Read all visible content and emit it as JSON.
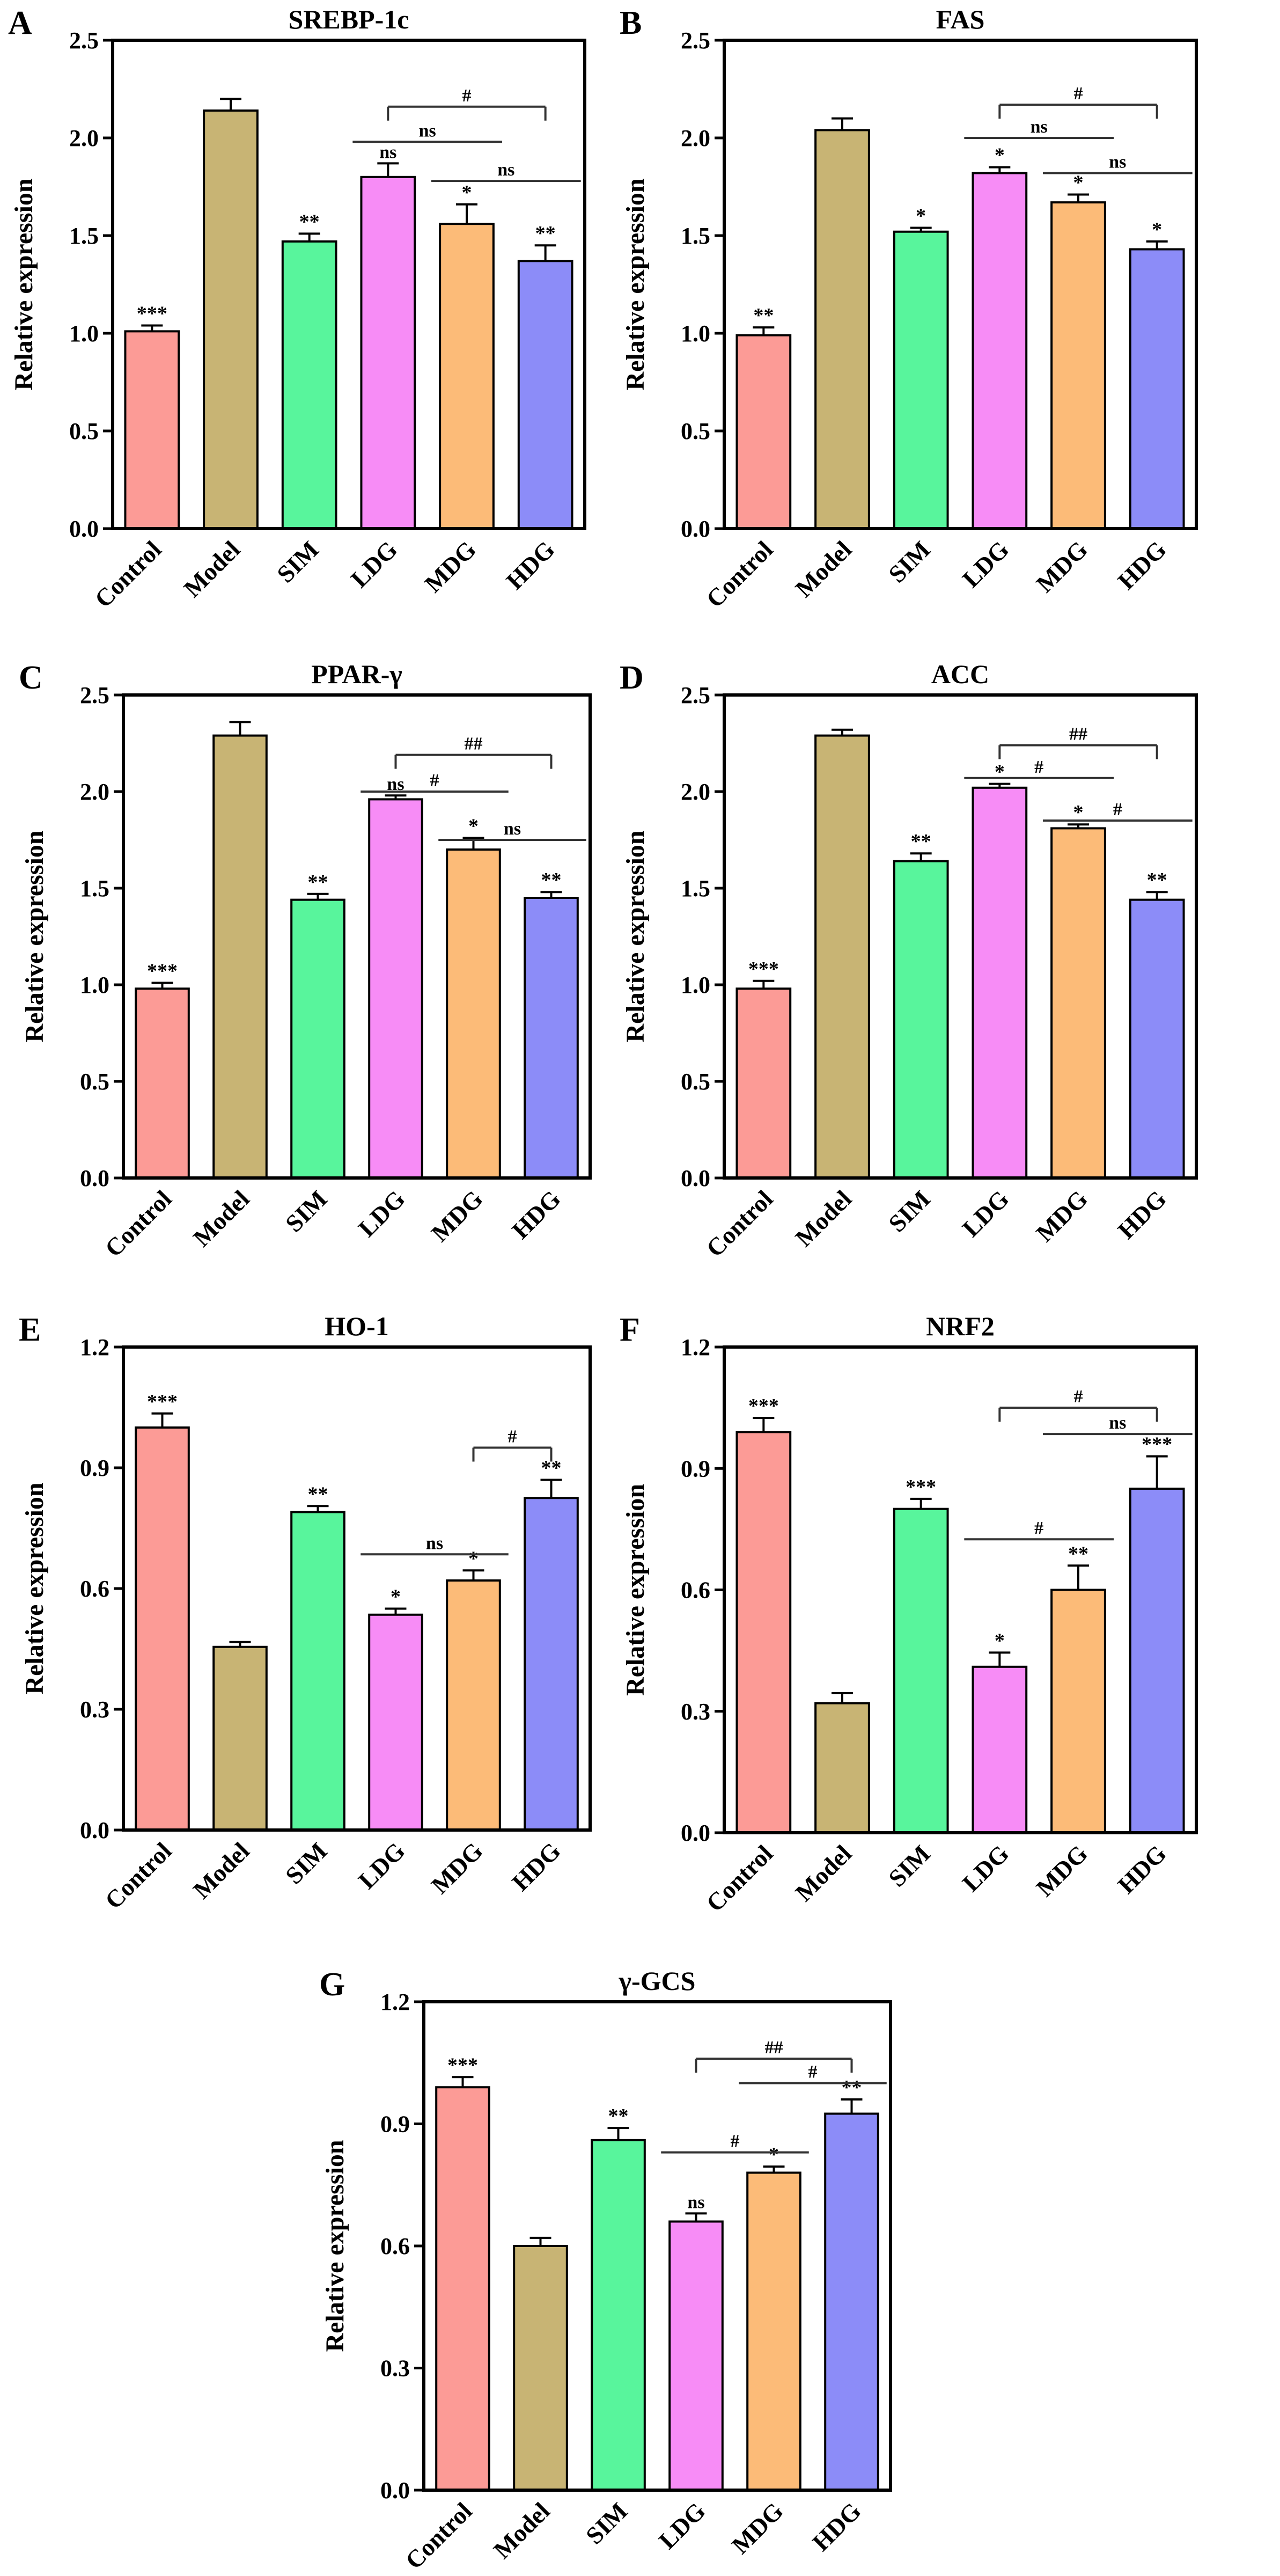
{
  "figure": {
    "categories": [
      "Control",
      "Model",
      "SIM",
      "LDG",
      "MDG",
      "HDG"
    ],
    "colors": [
      "#fc9b96",
      "#c8b474",
      "#58f59c",
      "#f78cf6",
      "#fcbb78",
      "#8c8cf8"
    ],
    "ylabel": "Relative expression"
  },
  "chart_data": [
    {
      "panel": "A",
      "title": "SREBP-1c",
      "type": "bar",
      "categories": [
        "Control",
        "Model",
        "SIM",
        "LDG",
        "MDG",
        "HDG"
      ],
      "values": [
        1.01,
        2.14,
        1.47,
        1.8,
        1.56,
        1.37
      ],
      "errors": [
        0.03,
        0.06,
        0.04,
        0.07,
        0.1,
        0.08
      ],
      "sig": [
        "***",
        "",
        "**",
        "ns",
        "*",
        "**"
      ],
      "ylim": [
        0,
        2.5
      ],
      "ticks": [
        "0.0",
        "0.5",
        "1.0",
        "1.5",
        "2.0",
        "2.5"
      ],
      "xlabel": "",
      "ylabel": "Relative expression",
      "comparisons": [
        {
          "from": "LDG",
          "to": "HDG",
          "label": "#",
          "level": 2.16,
          "bracket": true
        },
        {
          "from": "LDG",
          "to": "MDG",
          "label": "ns",
          "level": 1.98,
          "bracket": false
        },
        {
          "from": "MDG",
          "to": "HDG",
          "label": "ns",
          "level": 1.78,
          "bracket": false
        }
      ]
    },
    {
      "panel": "B",
      "title": "FAS",
      "type": "bar",
      "categories": [
        "Control",
        "Model",
        "SIM",
        "LDG",
        "MDG",
        "HDG"
      ],
      "values": [
        0.99,
        2.04,
        1.52,
        1.82,
        1.67,
        1.43
      ],
      "errors": [
        0.04,
        0.06,
        0.02,
        0.03,
        0.04,
        0.04
      ],
      "sig": [
        "**",
        "",
        "*",
        "*",
        "*",
        "*"
      ],
      "ylim": [
        0,
        2.5
      ],
      "ticks": [
        "0.0",
        "0.5",
        "1.0",
        "1.5",
        "2.0",
        "2.5"
      ],
      "xlabel": "",
      "ylabel": "Relative expression",
      "comparisons": [
        {
          "from": "LDG",
          "to": "HDG",
          "label": "#",
          "level": 2.17,
          "bracket": true
        },
        {
          "from": "LDG",
          "to": "MDG",
          "label": "ns",
          "level": 2.0,
          "bracket": false
        },
        {
          "from": "MDG",
          "to": "HDG",
          "label": "ns",
          "level": 1.82,
          "bracket": false
        }
      ]
    },
    {
      "panel": "C",
      "title": "PPAR-γ",
      "type": "bar",
      "categories": [
        "Control",
        "Model",
        "SIM",
        "LDG",
        "MDG",
        "HDG"
      ],
      "values": [
        0.98,
        2.29,
        1.44,
        1.96,
        1.7,
        1.45
      ],
      "errors": [
        0.03,
        0.07,
        0.03,
        0.02,
        0.06,
        0.03
      ],
      "sig": [
        "***",
        "",
        "**",
        "ns",
        "*",
        "**"
      ],
      "ylim": [
        0,
        2.5
      ],
      "ticks": [
        "0.0",
        "0.5",
        "1.0",
        "1.5",
        "2.0",
        "2.5"
      ],
      "xlabel": "",
      "ylabel": "Relative expression",
      "comparisons": [
        {
          "from": "LDG",
          "to": "HDG",
          "label": "##",
          "level": 2.19,
          "bracket": true
        },
        {
          "from": "LDG",
          "to": "MDG",
          "label": "#",
          "level": 2.0,
          "bracket": false
        },
        {
          "from": "MDG",
          "to": "HDG",
          "label": "ns",
          "level": 1.75,
          "bracket": false
        }
      ]
    },
    {
      "panel": "D",
      "title": "ACC",
      "type": "bar",
      "categories": [
        "Control",
        "Model",
        "SIM",
        "LDG",
        "MDG",
        "HDG"
      ],
      "values": [
        0.98,
        2.29,
        1.64,
        2.02,
        1.81,
        1.44
      ],
      "errors": [
        0.04,
        0.03,
        0.04,
        0.02,
        0.02,
        0.04
      ],
      "sig": [
        "***",
        "",
        "**",
        "*",
        "*",
        "**"
      ],
      "ylim": [
        0,
        2.5
      ],
      "ticks": [
        "0.0",
        "0.5",
        "1.0",
        "1.5",
        "2.0",
        "2.5"
      ],
      "xlabel": "",
      "ylabel": "Relative expression",
      "comparisons": [
        {
          "from": "LDG",
          "to": "HDG",
          "label": "##",
          "level": 2.24,
          "bracket": true
        },
        {
          "from": "LDG",
          "to": "MDG",
          "label": "#",
          "level": 2.07,
          "bracket": false
        },
        {
          "from": "MDG",
          "to": "HDG",
          "label": "#",
          "level": 1.85,
          "bracket": false
        }
      ]
    },
    {
      "panel": "E",
      "title": "HO-1",
      "type": "bar",
      "categories": [
        "Control",
        "Model",
        "SIM",
        "LDG",
        "MDG",
        "HDG"
      ],
      "values": [
        1.0,
        0.455,
        0.79,
        0.535,
        0.62,
        0.825
      ],
      "errors": [
        0.035,
        0.012,
        0.015,
        0.015,
        0.025,
        0.045
      ],
      "sig": [
        "***",
        "",
        "**",
        "*",
        "*",
        "**"
      ],
      "ylim": [
        0,
        1.2
      ],
      "ticks": [
        "0.0",
        "0.3",
        "0.6",
        "0.9",
        "1.2"
      ],
      "xlabel": "",
      "ylabel": "Relative expression",
      "comparisons": [
        {
          "from": "MDG",
          "to": "HDG",
          "label": "#",
          "level": 0.95,
          "bracket": true
        },
        {
          "from": "LDG",
          "to": "MDG",
          "label": "ns",
          "level": 0.685,
          "bracket": false
        }
      ]
    },
    {
      "panel": "F",
      "title": "NRF2",
      "type": "bar",
      "categories": [
        "Control",
        "Model",
        "SIM",
        "LDG",
        "MDG",
        "HDG"
      ],
      "values": [
        0.99,
        0.32,
        0.8,
        0.41,
        0.6,
        0.85
      ],
      "errors": [
        0.035,
        0.025,
        0.025,
        0.035,
        0.06,
        0.08
      ],
      "sig": [
        "***",
        "",
        "***",
        "*",
        "**",
        "***"
      ],
      "ylim": [
        0,
        1.2
      ],
      "ticks": [
        "0.0",
        "0.3",
        "0.6",
        "0.9",
        "1.2"
      ],
      "xlabel": "",
      "ylabel": "Relative expression",
      "comparisons": [
        {
          "from": "LDG",
          "to": "HDG",
          "label": "#",
          "level": 1.05,
          "bracket": true
        },
        {
          "from": "MDG",
          "to": "HDG",
          "label": "ns",
          "level": 0.985,
          "bracket": false
        },
        {
          "from": "LDG",
          "to": "MDG",
          "label": "#",
          "level": 0.725,
          "bracket": false
        }
      ]
    },
    {
      "panel": "G",
      "title": "γ-GCS",
      "type": "bar",
      "categories": [
        "Control",
        "Model",
        "SIM",
        "LDG",
        "MDG",
        "HDG"
      ],
      "values": [
        0.99,
        0.6,
        0.86,
        0.66,
        0.78,
        0.925
      ],
      "errors": [
        0.025,
        0.02,
        0.03,
        0.02,
        0.015,
        0.035
      ],
      "sig": [
        "***",
        "",
        "**",
        "ns",
        "*",
        "**"
      ],
      "ylim": [
        0,
        1.2
      ],
      "ticks": [
        "0.0",
        "0.3",
        "0.6",
        "0.9",
        "1.2"
      ],
      "xlabel": "",
      "ylabel": "Relative expression",
      "comparisons": [
        {
          "from": "LDG",
          "to": "HDG",
          "label": "##",
          "level": 1.06,
          "bracket": true
        },
        {
          "from": "MDG",
          "to": "HDG",
          "label": "#",
          "level": 1.0,
          "bracket": false
        },
        {
          "from": "LDG",
          "to": "MDG",
          "label": "#",
          "level": 0.83,
          "bracket": false
        }
      ]
    }
  ]
}
